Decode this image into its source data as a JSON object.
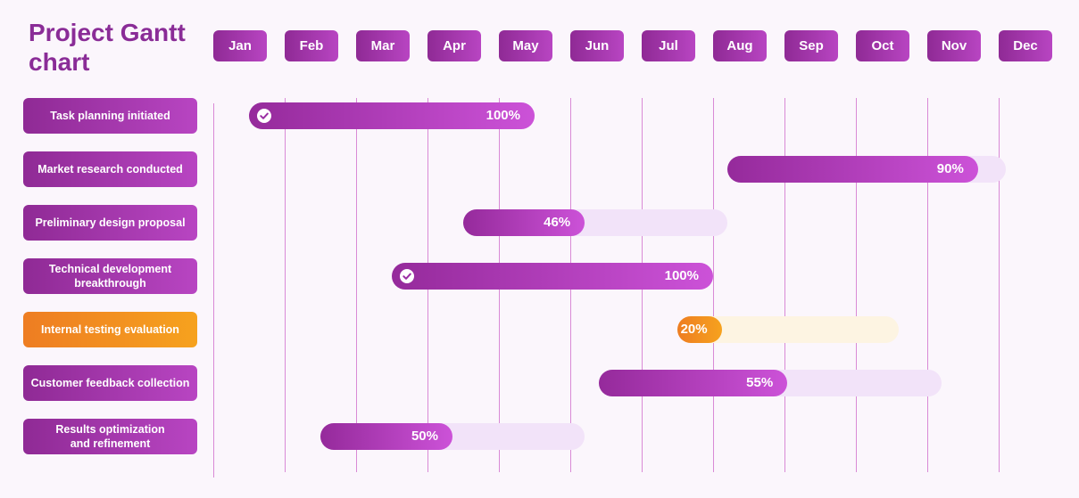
{
  "chart_data": {
    "type": "gantt",
    "title": "Project Gantt chart",
    "months": [
      "Jan",
      "Feb",
      "Mar",
      "Apr",
      "May",
      "Jun",
      "Jul",
      "Aug",
      "Sep",
      "Oct",
      "Nov",
      "Dec"
    ],
    "tasks": [
      {
        "name": "Task planning initiated",
        "start": 1.5,
        "end": 5.5,
        "progress": 100,
        "progress_label": "100%",
        "completed": true,
        "color": "#a236ad"
      },
      {
        "name": "Market research conducted",
        "start": 8.2,
        "end": 12.1,
        "progress": 90,
        "progress_label": "90%",
        "completed": false,
        "color": "#a236ad"
      },
      {
        "name": "Preliminary design proposal",
        "start": 4.5,
        "end": 8.2,
        "progress": 46,
        "progress_label": "46%",
        "completed": false,
        "color": "#a236ad"
      },
      {
        "name": "Technical development\nbreakthrough",
        "start": 3.5,
        "end": 8.0,
        "progress": 100,
        "progress_label": "100%",
        "completed": true,
        "color": "#a236ad"
      },
      {
        "name": "Internal testing evaluation",
        "start": 7.5,
        "end": 10.6,
        "progress": 20,
        "progress_label": "20%",
        "completed": false,
        "color": "#f29020"
      },
      {
        "name": "Customer feedback collection",
        "start": 6.4,
        "end": 11.2,
        "progress": 55,
        "progress_label": "55%",
        "completed": false,
        "color": "#a236ad"
      },
      {
        "name": "Results optimization\nand refinement",
        "start": 2.5,
        "end": 6.2,
        "progress": 50,
        "progress_label": "50%",
        "completed": false,
        "color": "#a236ad"
      }
    ],
    "check_icon": "check-circle-icon"
  }
}
